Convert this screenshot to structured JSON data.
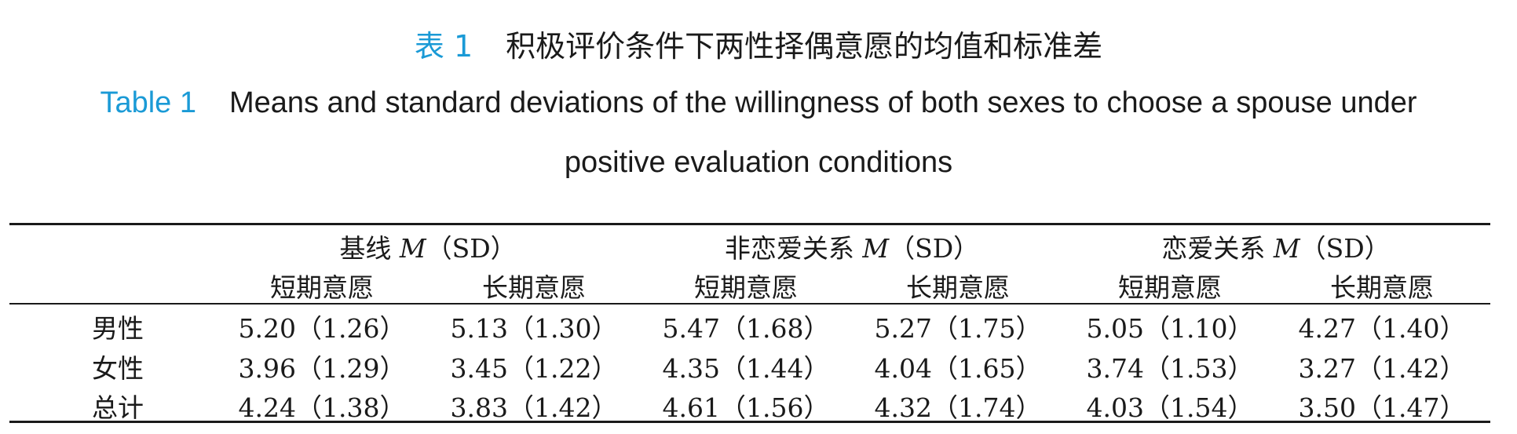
{
  "caption": {
    "zh_label": "表 1",
    "zh_title": "积极评价条件下两性择偶意愿的均值和标准差",
    "en_label": "Table 1",
    "en_title_line1": "Means and standard deviations of the willingness of both sexes to choose a spouse under",
    "en_title_line2": "positive evaluation conditions",
    "label_color": "#1a9ad6"
  },
  "table": {
    "groups": [
      {
        "name": "基线",
        "stat_m": "M",
        "stat_sd": "（SD）"
      },
      {
        "name": "非恋爱关系",
        "stat_m": "M",
        "stat_sd": "（SD）"
      },
      {
        "name": "恋爱关系",
        "stat_m": "M",
        "stat_sd": "（SD）"
      }
    ],
    "subheaders": [
      "短期意愿",
      "长期意愿",
      "短期意愿",
      "长期意愿",
      "短期意愿",
      "长期意愿"
    ],
    "rows": [
      {
        "label": "男性",
        "cells": [
          "5.20（1.26）",
          "5.13（1.30）",
          "5.47（1.68）",
          "5.27（1.75）",
          "5.05（1.10）",
          "4.27（1.40）"
        ]
      },
      {
        "label": "女性",
        "cells": [
          "3.96（1.29）",
          "3.45（1.22）",
          "4.35（1.44）",
          "4.04（1.65）",
          "3.74（1.53）",
          "3.27（1.42）"
        ]
      },
      {
        "label": "总计",
        "cells": [
          "4.24（1.38）",
          "3.83（1.42）",
          "4.61（1.56）",
          "4.32（1.74）",
          "4.03（1.54）",
          "3.50（1.47）"
        ]
      }
    ]
  }
}
